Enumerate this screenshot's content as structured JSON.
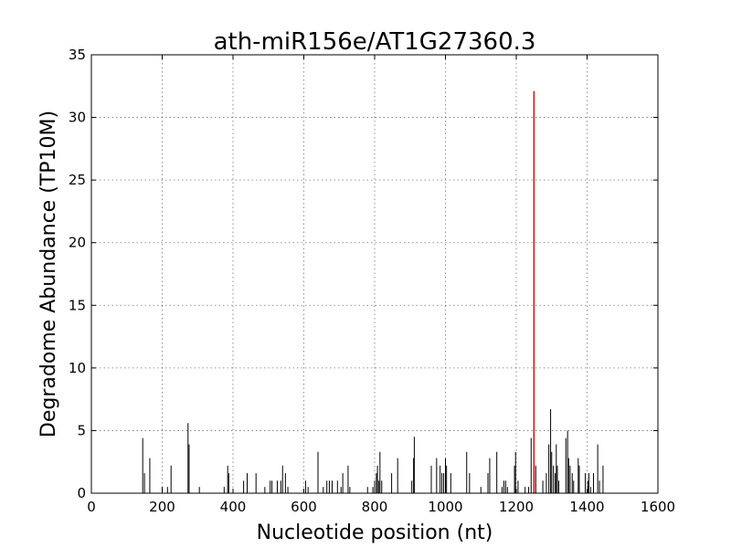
{
  "chart_data": {
    "type": "bar",
    "title": "ath-miR156e/AT1G27360.3",
    "xlabel": "Nucleotide position (nt)",
    "ylabel": "Degradome Abundance (TP10M)",
    "xlim": [
      0,
      1600
    ],
    "ylim": [
      0,
      35
    ],
    "xticks": [
      0,
      200,
      400,
      600,
      800,
      1000,
      1200,
      1400,
      1600
    ],
    "yticks": [
      0,
      5,
      10,
      15,
      20,
      25,
      30,
      35
    ],
    "grid": true,
    "colors": {
      "series": "#000000",
      "highlight": "#e01010"
    },
    "series": [
      {
        "values": [
          [
            145,
            4.4
          ],
          [
            150,
            1.6
          ],
          [
            165,
            2.8
          ],
          [
            200,
            0.5
          ],
          [
            215,
            0.5
          ],
          [
            225,
            2.2
          ],
          [
            273,
            5.6
          ],
          [
            276,
            3.9
          ],
          [
            305,
            0.5
          ],
          [
            375,
            0.5
          ],
          [
            385,
            2.2
          ],
          [
            388,
            1.6
          ],
          [
            430,
            1.0
          ],
          [
            440,
            1.6
          ],
          [
            465,
            1.6
          ],
          [
            490,
            0.5
          ],
          [
            505,
            1.0
          ],
          [
            510,
            1.0
          ],
          [
            525,
            1.0
          ],
          [
            535,
            1.0
          ],
          [
            540,
            2.2
          ],
          [
            548,
            1.6
          ],
          [
            555,
            0.5
          ],
          [
            605,
            1.0
          ],
          [
            612,
            0.5
          ],
          [
            640,
            3.3
          ],
          [
            655,
            0.5
          ],
          [
            665,
            1.0
          ],
          [
            672,
            1.0
          ],
          [
            680,
            1.0
          ],
          [
            695,
            1.0
          ],
          [
            705,
            0.5
          ],
          [
            710,
            1.6
          ],
          [
            725,
            2.2
          ],
          [
            730,
            0.5
          ],
          [
            780,
            0.5
          ],
          [
            795,
            0.5
          ],
          [
            800,
            1.0
          ],
          [
            805,
            1.6
          ],
          [
            808,
            2.2
          ],
          [
            812,
            1.0
          ],
          [
            815,
            3.3
          ],
          [
            820,
            1.0
          ],
          [
            848,
            1.6
          ],
          [
            865,
            2.8
          ],
          [
            905,
            1.0
          ],
          [
            910,
            2.8
          ],
          [
            912,
            4.5
          ],
          [
            960,
            2.2
          ],
          [
            975,
            2.8
          ],
          [
            985,
            2.2
          ],
          [
            990,
            1.6
          ],
          [
            995,
            1.6
          ],
          [
            1000,
            2.8
          ],
          [
            1003,
            2.2
          ],
          [
            1015,
            1.6
          ],
          [
            1060,
            3.3
          ],
          [
            1068,
            1.6
          ],
          [
            1100,
            0.5
          ],
          [
            1120,
            1.6
          ],
          [
            1125,
            2.8
          ],
          [
            1145,
            3.3
          ],
          [
            1160,
            0.5
          ],
          [
            1165,
            1.0
          ],
          [
            1170,
            1.0
          ],
          [
            1175,
            0.5
          ],
          [
            1195,
            2.2
          ],
          [
            1198,
            3.3
          ],
          [
            1205,
            1.0
          ],
          [
            1225,
            0.5
          ],
          [
            1235,
            0.5
          ],
          [
            1242,
            4.4
          ],
          [
            1255,
            2.2
          ],
          [
            1275,
            1.0
          ],
          [
            1285,
            1.6
          ],
          [
            1292,
            3.9
          ],
          [
            1297,
            6.7
          ],
          [
            1300,
            3.3
          ],
          [
            1305,
            2.2
          ],
          [
            1310,
            1.6
          ],
          [
            1313,
            3.9
          ],
          [
            1316,
            2.2
          ],
          [
            1320,
            1.0
          ],
          [
            1340,
            4.4
          ],
          [
            1345,
            5.0
          ],
          [
            1348,
            2.8
          ],
          [
            1352,
            2.2
          ],
          [
            1358,
            1.6
          ],
          [
            1362,
            1.0
          ],
          [
            1375,
            2.8
          ],
          [
            1378,
            2.2
          ],
          [
            1395,
            1.6
          ],
          [
            1402,
            1.0
          ],
          [
            1405,
            1.6
          ],
          [
            1410,
            0.5
          ],
          [
            1418,
            1.6
          ],
          [
            1430,
            3.9
          ],
          [
            1435,
            1.0
          ],
          [
            1445,
            2.2
          ]
        ]
      }
    ],
    "highlight": {
      "x": 1250,
      "value": 32.1
    }
  }
}
